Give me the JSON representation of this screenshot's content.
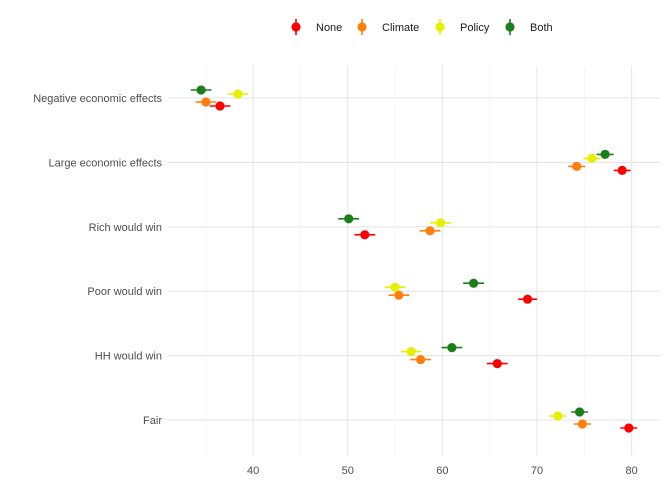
{
  "chart_data": {
    "type": "scatter",
    "subtype": "dot-and-errorbar",
    "orientation": "horizontal",
    "title": "",
    "xlabel": "",
    "ylabel": "",
    "xlim": [
      31,
      83
    ],
    "x_ticks": [
      40,
      50,
      60,
      70,
      80
    ],
    "grid": true,
    "legend_position": "top",
    "categories": [
      "Negative economic effects",
      "Large economic effects",
      "Rich would win",
      "Poor would win",
      "HH would win",
      "Fair"
    ],
    "series": [
      {
        "name": "None",
        "color": "#ff0000",
        "values": [
          36.5,
          79.0,
          51.8,
          69.0,
          65.8,
          79.7
        ],
        "errors": [
          1.1,
          0.9,
          1.1,
          1.0,
          1.1,
          0.9
        ]
      },
      {
        "name": "Climate",
        "color": "#ff7f0e",
        "values": [
          35.0,
          74.2,
          58.7,
          55.4,
          57.7,
          74.8
        ],
        "errors": [
          1.1,
          0.9,
          1.1,
          1.1,
          1.1,
          0.9
        ]
      },
      {
        "name": "Policy",
        "color": "#e5f000",
        "values": [
          38.4,
          75.8,
          59.8,
          55.0,
          56.7,
          72.2
        ],
        "errors": [
          1.1,
          0.9,
          1.1,
          1.1,
          1.1,
          0.9
        ]
      },
      {
        "name": "Both",
        "color": "#1a7f1a",
        "values": [
          34.5,
          77.2,
          50.1,
          63.3,
          61.0,
          74.5
        ],
        "errors": [
          1.1,
          0.9,
          1.1,
          1.1,
          1.1,
          0.9
        ]
      }
    ]
  }
}
